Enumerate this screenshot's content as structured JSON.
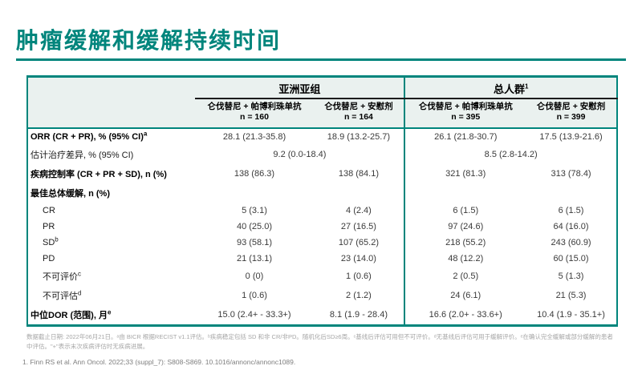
{
  "page": {
    "title": "肿瘤缓解和缓解持续时间"
  },
  "theme": {
    "accent_color": "#00857C",
    "header_bg": "#EAF1EF"
  },
  "table": {
    "groups": [
      {
        "label": "亚洲亚组",
        "sup": ""
      },
      {
        "label": "总人群",
        "sup": "1"
      }
    ],
    "columns": [
      {
        "arm": "仑伐替尼 + 帕博利珠单抗",
        "n": "n = 160"
      },
      {
        "arm": "仑伐替尼 + 安慰剂",
        "n": "n = 164"
      },
      {
        "arm": "仑伐替尼 + 帕博利珠单抗",
        "n": "n = 395"
      },
      {
        "arm": "仑伐替尼 + 安慰剂",
        "n": "n = 399"
      }
    ],
    "rows": [
      {
        "label": "ORR (CR + PR), % (95% CI)",
        "sup": "a",
        "values": [
          "28.1 (21.3-35.8)",
          "18.9 (13.2-25.7)",
          "26.1 (21.8-30.7)",
          "17.5 (13.9-21.6)"
        ]
      },
      {
        "label": "估计治疗差异, % (95% CI)",
        "sup": "",
        "values": [
          "9.2  (0.0-18.4)",
          "8.5 (2.8-14.2)"
        ]
      },
      {
        "label": "疾病控制率 (CR + PR + SD), n (%)",
        "sup": "",
        "values": [
          "138 (86.3)",
          "138 (84.1)",
          "321 (81.3)",
          "313 (78.4)"
        ]
      },
      {
        "label": "最佳总体缓解, n (%)",
        "sup": "",
        "values": [
          "",
          "",
          "",
          ""
        ]
      },
      {
        "label": "CR",
        "sup": "",
        "values": [
          "5 (3.1)",
          "4 (2.4)",
          "6 (1.5)",
          "6 (1.5)"
        ]
      },
      {
        "label": "PR",
        "sup": "",
        "values": [
          "40 (25.0)",
          "27 (16.5)",
          "97 (24.6)",
          "64 (16.0)"
        ]
      },
      {
        "label": "SD",
        "sup": "b",
        "values": [
          "93 (58.1)",
          "107 (65.2)",
          "218 (55.2)",
          "243 (60.9)"
        ]
      },
      {
        "label": "PD",
        "sup": "",
        "values": [
          "21 (13.1)",
          "23 (14.0)",
          "48 (12.2)",
          "60 (15.0)"
        ]
      },
      {
        "label": "不可评价",
        "sup": "c",
        "values": [
          "0 (0)",
          "1 (0.6)",
          "2 (0.5)",
          "5 (1.3)"
        ]
      },
      {
        "label": "不可评估",
        "sup": "d",
        "values": [
          "1 (0.6)",
          "2 (1.2)",
          "24 (6.1)",
          "21 (5.3)"
        ]
      },
      {
        "label": "中位DOR (范围), 月",
        "sup": "e",
        "values": [
          "15.0 (2.4+ - 33.3+)",
          "8.1 (1.9 - 28.4)",
          "16.6 (2.0+ - 33.6+)",
          "10.4 (1.9 - 35.1+)"
        ]
      }
    ]
  },
  "footnotes": {
    "text": "数据截止日期: 2022年06月21日。ᵃ由 BICR 根据RECIST v1.1评估。ᵇ疾病稳定包括 SD 和非 CR/非PD。随机化后SD≥6周。ᶜ基线后评估可用但不可评价。ᵈ无基线后评估可用于缓解评价。ᵉ在确认完全缓解或部分缓解的患者中评估。\"+\"表示末次疾病评估时无疾病进展。"
  },
  "reference": {
    "text": "1. Finn RS et al. Ann Oncol. 2022;33 (suppl_7): S808-S869. 10.1016/annonc/annonc1089."
  }
}
